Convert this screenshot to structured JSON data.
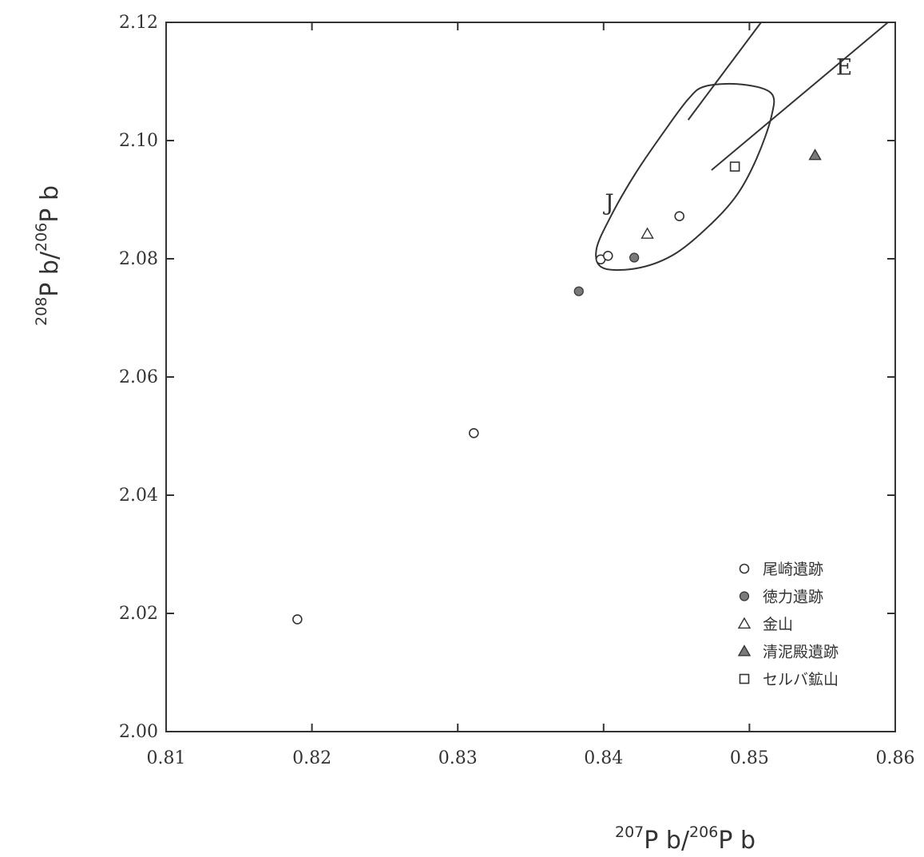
{
  "chart_data": {
    "type": "scatter",
    "title": "",
    "xlabel": {
      "sup1": "207",
      "main1": "P b",
      "slash": "/",
      "sup2": "206",
      "main2": "P b"
    },
    "ylabel": {
      "sup1": "208",
      "main1": "P b",
      "slash": "/",
      "sup2": "206",
      "main2": "P b"
    },
    "xlim": [
      0.81,
      0.86
    ],
    "ylim": [
      2.0,
      2.12
    ],
    "xticks": [
      "0.81",
      "0.82",
      "0.83",
      "0.84",
      "0.85",
      "0.86"
    ],
    "yticks": [
      "2.00",
      "2.02",
      "2.04",
      "2.06",
      "2.08",
      "2.10",
      "2.12"
    ],
    "grid": false,
    "legend_position": "bottom-right",
    "series": [
      {
        "name": "尾崎遺跡",
        "marker": "circle-open",
        "points": [
          {
            "x": 0.819,
            "y": 2.019
          },
          {
            "x": 0.8311,
            "y": 2.0505
          },
          {
            "x": 0.8398,
            "y": 2.0799
          },
          {
            "x": 0.8403,
            "y": 2.0805
          },
          {
            "x": 0.8452,
            "y": 2.0872
          }
        ]
      },
      {
        "name": "徳力遺跡",
        "marker": "circle-filled",
        "points": [
          {
            "x": 0.8383,
            "y": 2.0745
          },
          {
            "x": 0.8421,
            "y": 2.0802
          }
        ]
      },
      {
        "name": "金山",
        "marker": "triangle-open",
        "points": [
          {
            "x": 0.843,
            "y": 2.0842
          }
        ]
      },
      {
        "name": "清泥殿遺跡",
        "marker": "triangle-filled",
        "points": [
          {
            "x": 0.8545,
            "y": 2.0975
          }
        ]
      },
      {
        "name": "セルバ鉱山",
        "marker": "square-open",
        "points": [
          {
            "x": 0.849,
            "y": 2.0956
          }
        ]
      }
    ],
    "regions": [
      {
        "label": "J",
        "shape": "closed-curve",
        "outline": [
          [
            0.84,
            2.0784
          ],
          [
            0.8425,
            2.0785
          ],
          [
            0.845,
            2.081
          ],
          [
            0.8475,
            2.0862
          ],
          [
            0.8492,
            2.091
          ],
          [
            0.8505,
            2.097
          ],
          [
            0.8515,
            2.104
          ],
          [
            0.8515,
            2.108
          ],
          [
            0.8495,
            2.1095
          ],
          [
            0.847,
            2.1092
          ],
          [
            0.8458,
            2.107
          ],
          [
            0.844,
            2.101
          ],
          [
            0.8422,
            2.0945
          ],
          [
            0.8405,
            2.0872
          ],
          [
            0.8395,
            2.0815
          ]
        ],
        "label_pos": [
          0.8404,
          2.0896
        ]
      },
      {
        "label": "E",
        "shape": "band",
        "upper_line": [
          [
            0.8458,
            2.1035
          ],
          [
            0.8508,
            2.12
          ]
        ],
        "lower_line": [
          [
            0.8474,
            2.095
          ],
          [
            0.8595,
            2.12
          ]
        ],
        "label_pos": [
          0.8565,
          2.1125
        ]
      }
    ],
    "colors": {
      "ink": "#333333",
      "filled_marker": "#7a7a7a",
      "background": "#ffffff"
    }
  }
}
